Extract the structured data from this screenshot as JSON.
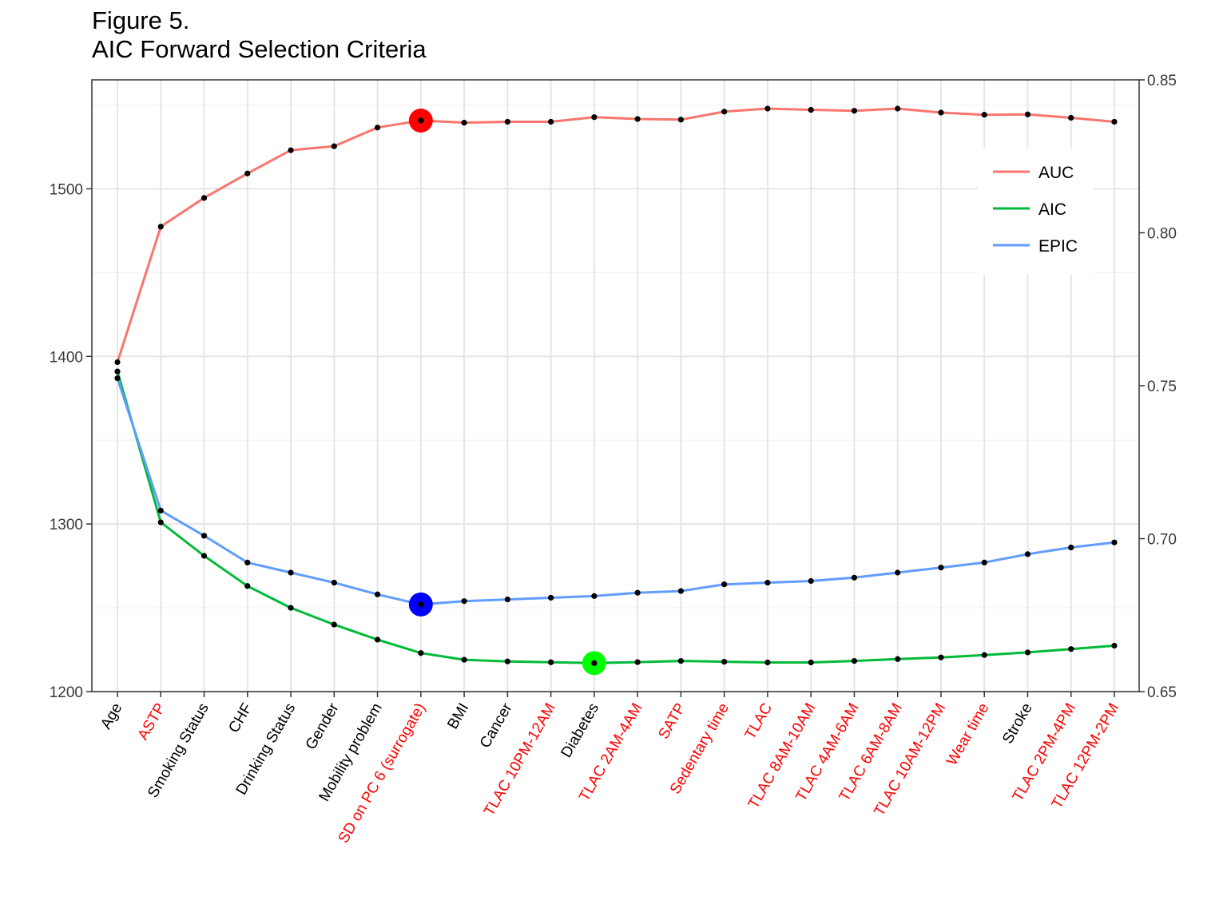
{
  "title": "Figure 5.",
  "subtitle": "AIC Forward Selection Criteria",
  "chart_data": {
    "type": "line",
    "categories": [
      "Age",
      "ASTP",
      "Smoking Status",
      "CHF",
      "Drinking Status",
      "Gender",
      "Mobility problem",
      "SD on PC 6 (surrogate)",
      "BMI",
      "Cancer",
      "TLAC 10PM-12AM",
      "Diabetes",
      "TLAC 2AM-4AM",
      "SATP",
      "Sedentary time",
      "TLAC",
      "TLAC 8AM-10AM",
      "TLAC 4AM-6AM",
      "TLAC 6AM-8AM",
      "TLAC 10AM-12PM",
      "Wear time",
      "Stroke",
      "TLAC 2PM-4PM",
      "TLAC 12PM-2PM"
    ],
    "category_colors": [
      "#000000",
      "#ff0000",
      "#000000",
      "#000000",
      "#000000",
      "#000000",
      "#000000",
      "#ff0000",
      "#000000",
      "#000000",
      "#ff0000",
      "#000000",
      "#ff0000",
      "#ff0000",
      "#ff0000",
      "#ff0000",
      "#ff0000",
      "#ff0000",
      "#ff0000",
      "#ff0000",
      "#ff0000",
      "#000000",
      "#ff0000",
      "#ff0000"
    ],
    "y_left": {
      "lim": [
        1200,
        1565
      ],
      "ticks": [
        1200,
        1300,
        1400,
        1500
      ]
    },
    "y_right": {
      "lim": [
        0.65,
        0.85
      ],
      "ticks": [
        "0.65",
        "0.70",
        "0.75",
        "0.80",
        "0.85"
      ]
    },
    "grid": true,
    "legend_position": "right",
    "series": [
      {
        "name": "AUC",
        "axis": "right",
        "color": "#f8766d",
        "values": [
          0.7577,
          0.802,
          0.8114,
          0.8194,
          0.827,
          0.8283,
          0.8344,
          0.8367,
          0.836,
          0.8363,
          0.8363,
          0.8378,
          0.8372,
          0.837,
          0.8396,
          0.8406,
          0.8402,
          0.8399,
          0.8406,
          0.8393,
          0.8386,
          0.8387,
          0.8376,
          0.8363
        ],
        "highlight_index": 7,
        "highlight_color": "#ff0000"
      },
      {
        "name": "AIC",
        "axis": "left",
        "color": "#00ba38",
        "values": [
          1391,
          1301,
          1281,
          1263,
          1250,
          1240,
          1231,
          1223,
          1219,
          1218,
          1217.5,
          1217,
          1217.6,
          1218.3,
          1217.8,
          1217.4,
          1217.4,
          1218.3,
          1219.4,
          1220.4,
          1221.8,
          1223.4,
          1225.4,
          1227.4
        ],
        "highlight_index": 11,
        "highlight_color": "#00ff00"
      },
      {
        "name": "EPIC",
        "axis": "left",
        "color": "#619cff",
        "values": [
          1387,
          1308,
          1293,
          1277,
          1271,
          1265,
          1258,
          1252,
          1254,
          1255,
          1256,
          1257,
          1259,
          1260,
          1264,
          1265,
          1266,
          1268,
          1271,
          1274,
          1277,
          1282,
          1286,
          1289
        ],
        "highlight_index": 7,
        "highlight_color": "#0000ff"
      }
    ]
  }
}
